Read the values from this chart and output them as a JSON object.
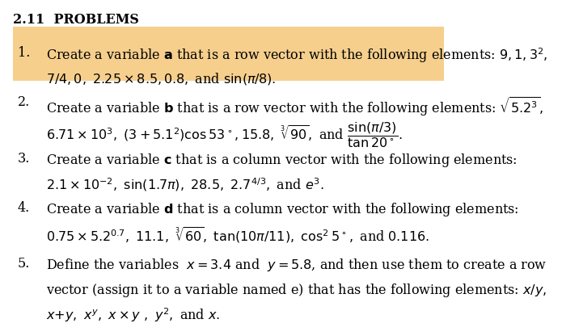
{
  "title": "2.11  PROBLEMS",
  "background_color": "#ffffff",
  "highlight_color": "#f0a830",
  "highlight_alpha": 0.55,
  "text_color": "#000000",
  "font_size": 11.5,
  "items": [
    {
      "number": "1.",
      "lines": [
        "Create a variable $\\mathbf{a}$ that is a row vector with the following elements: $9, 1, 3^2,$",
        "$7/4, 0,\\ 2.25 \\times 8.5, 0.8,$ and $\\sin(\\pi/8).$"
      ],
      "highlight": true
    },
    {
      "number": "2.",
      "lines": [
        "Create a variable $\\mathbf{b}$ that is a row vector with the following elements: $\\sqrt{5.2^3},$",
        "$6.71 \\times 10^3,\\ (3+5.1^2)\\cos 53^\\circ, 15.8,\\ \\sqrt[3]{90},$ and $\\dfrac{\\sin(\\pi/3)}{\\tan 20^\\circ}.$"
      ],
      "highlight": false
    },
    {
      "number": "3.",
      "lines": [
        "Create a variable $\\mathbf{c}$ that is a column vector with the following elements:",
        "$2.1 \\times 10^{-2},\\ \\sin(1.7\\pi),\\ 28.5,\\ 2.7^{4/3},$ and $e^3.$"
      ],
      "highlight": false
    },
    {
      "number": "4.",
      "lines": [
        "Create a variable $\\mathbf{d}$ that is a column vector with the following elements:",
        "$0.75 \\times 5.2^{0.7},\\ 11.1,\\ \\sqrt[3]{60},\\ \\tan(10\\pi/11),\\ \\cos^2 5^\\circ,$ and $0.116.$"
      ],
      "highlight": false
    },
    {
      "number": "5.",
      "lines": [
        "Define the variables $\\ x = 3.4$ and $\\ y = 5.8$, and then use them to create a row",
        "vector (assign it to a variable named e) that has the following elements: $x/y,$",
        "$x{+}y,\\ x^y,\\ x \\times y\\ ,\\ y^2,$ and $x.$"
      ],
      "highlight": false
    }
  ]
}
